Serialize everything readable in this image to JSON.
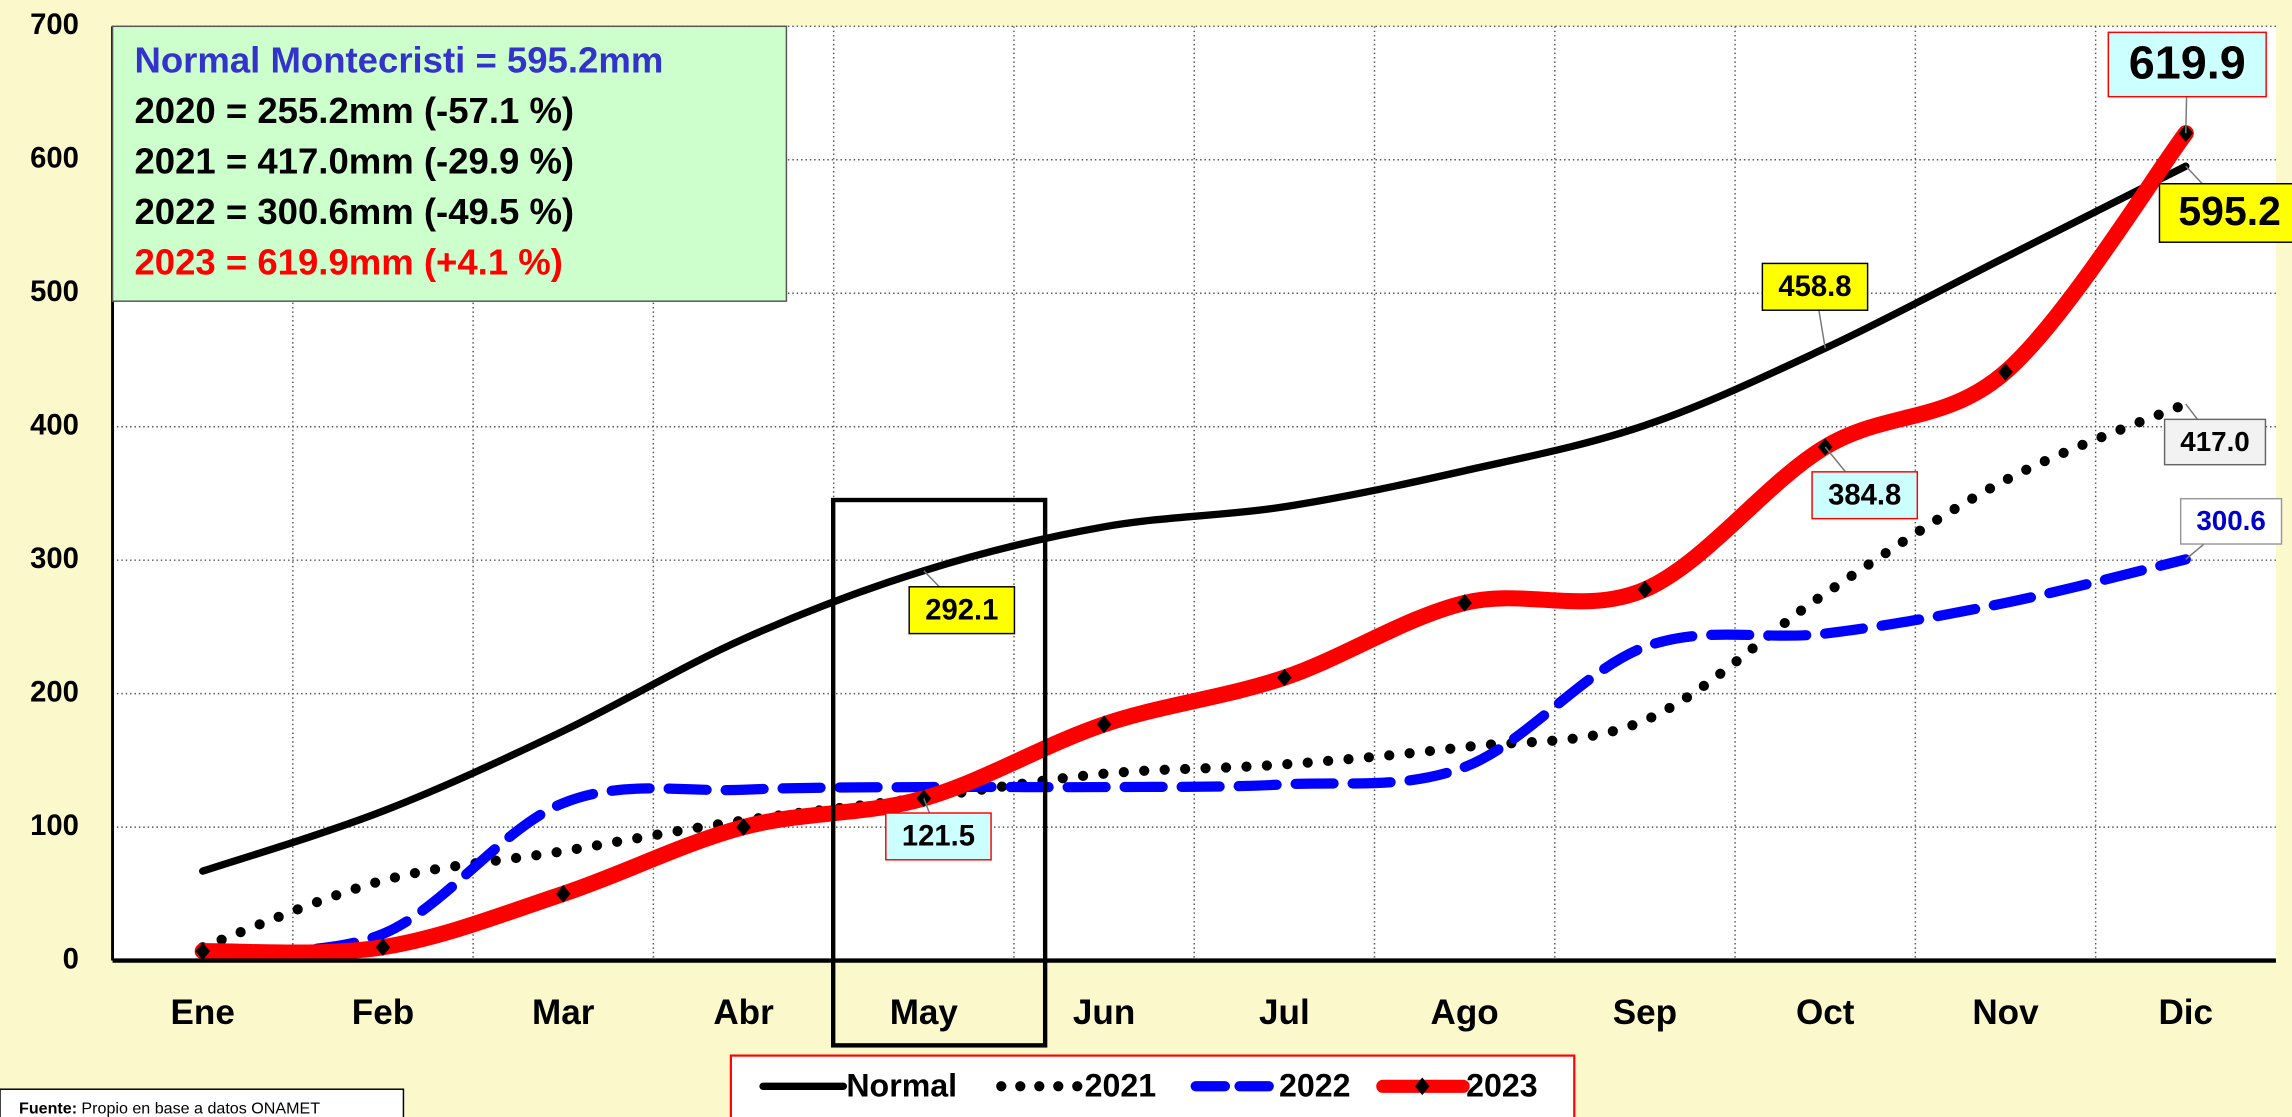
{
  "chart_data": {
    "type": "line",
    "categories": [
      "Ene",
      "Feb",
      "Mar",
      "Abr",
      "May",
      "Jun",
      "Jul",
      "Ago",
      "Sep",
      "Oct",
      "Nov",
      "Dic"
    ],
    "ylim": [
      0,
      700
    ],
    "yticks": [
      0,
      100,
      200,
      300,
      400,
      500,
      600,
      700
    ],
    "grid": true,
    "legend": "bottom",
    "series": [
      {
        "name": "Normal",
        "color": "#000000",
        "dash": "solid",
        "values": [
          67,
          112,
          172,
          241,
          292.1,
          325,
          340,
          367,
          401,
          458.8,
          527,
          595.2
        ],
        "value_labels": [
          null,
          null,
          null,
          null,
          "292.1",
          null,
          null,
          null,
          null,
          "458.8",
          null,
          "595.2"
        ]
      },
      {
        "name": "2021",
        "color": "#000000",
        "dash": "dotted",
        "values": [
          10,
          60,
          82,
          105,
          122,
          140,
          147,
          160,
          180,
          275,
          360,
          417.0
        ],
        "value_labels": [
          null,
          null,
          null,
          null,
          null,
          null,
          null,
          null,
          null,
          null,
          null,
          "417.0"
        ]
      },
      {
        "name": "2022",
        "color": "#0000ff",
        "dash": "dashed",
        "values": [
          7,
          20,
          118,
          128,
          130,
          130,
          132,
          145,
          235,
          245,
          268,
          300.6
        ],
        "value_labels": [
          null,
          null,
          null,
          null,
          null,
          null,
          null,
          null,
          null,
          null,
          null,
          "300.6"
        ]
      },
      {
        "name": "2023",
        "color": "#ff0000",
        "dash": "solid-marker",
        "values": [
          7,
          10,
          50,
          100,
          121.5,
          177,
          212,
          268,
          278,
          384.8,
          441,
          619.9
        ],
        "value_labels": [
          null,
          null,
          null,
          null,
          "121.5",
          null,
          null,
          null,
          null,
          "384.8",
          null,
          "619.9"
        ]
      }
    ],
    "info_box": [
      {
        "text": "Normal Montecristi = 595.2mm",
        "color": "#3333cc"
      },
      {
        "text": "2020 = 255.2mm (-57.1 %)",
        "color": "#000000"
      },
      {
        "text": "2021 = 417.0mm (-29.9 %)",
        "color": "#000000"
      },
      {
        "text": "2022 = 300.6mm (-49.5 %)",
        "color": "#000000"
      },
      {
        "text": "2023 = 619.9mm (+4.1 %)",
        "color": "#ff0000"
      }
    ],
    "source": {
      "label": "Fuente:",
      "text": "Propio en base a datos ONAMET"
    }
  }
}
